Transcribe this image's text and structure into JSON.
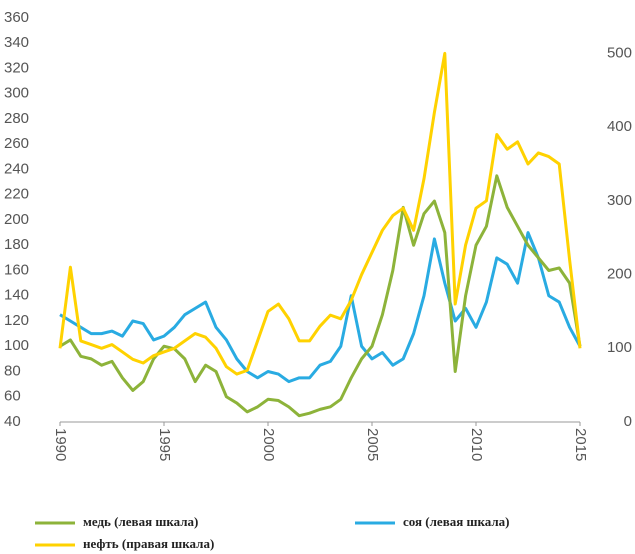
{
  "chart_data": {
    "type": "line",
    "x": [
      1990,
      1990.5,
      1991,
      1991.5,
      1992,
      1992.5,
      1993,
      1993.5,
      1994,
      1994.5,
      1995,
      1995.5,
      1996,
      1996.5,
      1997,
      1997.5,
      1998,
      1998.5,
      1999,
      1999.5,
      2000,
      2000.5,
      2001,
      2001.5,
      2002,
      2002.5,
      2003,
      2003.5,
      2004,
      2004.5,
      2005,
      2005.5,
      2006,
      2006.5,
      2007,
      2007.5,
      2008,
      2008.5,
      2009,
      2009.5,
      2010,
      2010.5,
      2011,
      2011.5,
      2012,
      2012.5,
      2013,
      2013.5,
      2014,
      2014.5,
      2015
    ],
    "series": [
      {
        "name": "медь (левая шкала)",
        "color": "#8db33a",
        "axis": "y",
        "values": [
          100,
          105,
          92,
          90,
          85,
          88,
          75,
          65,
          72,
          90,
          100,
          98,
          90,
          72,
          85,
          80,
          60,
          55,
          48,
          52,
          58,
          57,
          52,
          45,
          47,
          50,
          52,
          58,
          75,
          90,
          100,
          125,
          160,
          210,
          180,
          205,
          215,
          190,
          80,
          140,
          180,
          195,
          235,
          210,
          195,
          180,
          170,
          160,
          162,
          150,
          100
        ]
      },
      {
        "name": "соя (левая шкала)",
        "color": "#29abe2",
        "axis": "y",
        "values": [
          125,
          120,
          115,
          110,
          110,
          112,
          108,
          120,
          118,
          105,
          108,
          115,
          125,
          130,
          135,
          115,
          105,
          90,
          80,
          75,
          80,
          78,
          72,
          75,
          75,
          85,
          88,
          100,
          140,
          100,
          90,
          95,
          85,
          90,
          110,
          140,
          185,
          150,
          120,
          130,
          115,
          135,
          170,
          165,
          150,
          190,
          170,
          140,
          135,
          115,
          100
        ]
      },
      {
        "name": "нефть (правая шкала)",
        "color": "#ffd200",
        "axis": "y2",
        "values": [
          100,
          210,
          110,
          105,
          100,
          105,
          95,
          85,
          80,
          90,
          95,
          100,
          110,
          120,
          115,
          100,
          75,
          65,
          70,
          110,
          150,
          160,
          140,
          110,
          110,
          130,
          145,
          140,
          165,
          200,
          230,
          260,
          280,
          290,
          260,
          330,
          420,
          500,
          160,
          240,
          290,
          300,
          390,
          370,
          380,
          350,
          365,
          360,
          350,
          220,
          100
        ]
      }
    ],
    "xlim": [
      1990,
      2015
    ],
    "xticks": [
      1990,
      1995,
      2000,
      2005,
      2010,
      2015
    ],
    "ylim": [
      40,
      360
    ],
    "yticks": [
      40,
      60,
      80,
      100,
      120,
      140,
      160,
      180,
      200,
      220,
      240,
      260,
      280,
      300,
      320,
      340,
      360
    ],
    "y2lim": [
      0,
      548
    ],
    "y2ticks": [
      0,
      100,
      200,
      300,
      400,
      500
    ]
  }
}
